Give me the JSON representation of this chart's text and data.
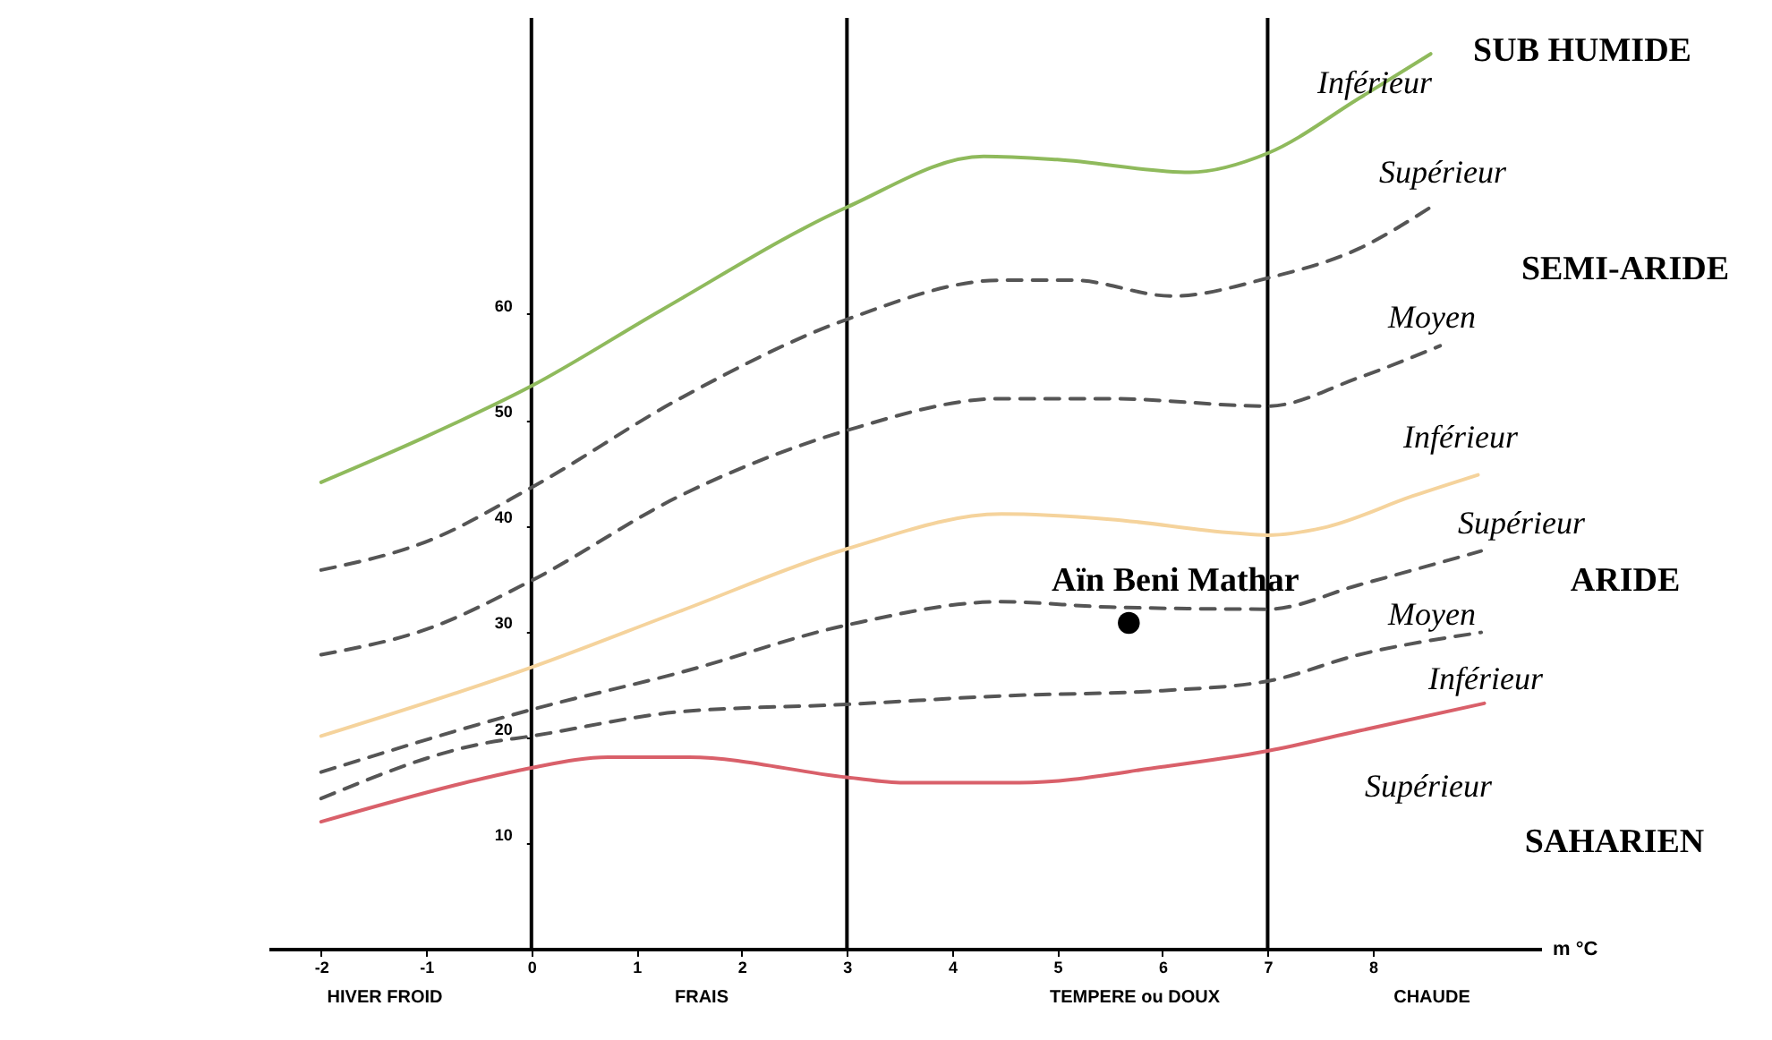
{
  "chart_data": {
    "type": "line",
    "xlabel": "m °C",
    "xlim": [
      -2.5,
      9.6
    ],
    "xticks": [
      -2,
      -1,
      0,
      1,
      2,
      3,
      4,
      5,
      6,
      7,
      8
    ],
    "ylim": [
      0,
      88
    ],
    "yticks": [
      10,
      20,
      30,
      40,
      50,
      60
    ],
    "grid": false,
    "series": [
      {
        "color": "#8fba5c",
        "line_style": "solid",
        "x": [
          -2,
          -1.05,
          0,
          1.24,
          3,
          4.3,
          5,
          6.26,
          7,
          7.87,
          8.55
        ],
        "values": [
          44.1,
          48.2,
          53.2,
          60.4,
          70.1,
          74.9,
          74.6,
          73.4,
          75.2,
          80.4,
          84.6
        ]
      },
      {
        "color": "#555555",
        "line_style": "dashed",
        "x": [
          -2,
          -0.97,
          0,
          1.41,
          3,
          4.47,
          5.15,
          6.09,
          7,
          7.87,
          8.55
        ],
        "values": [
          35.8,
          38.6,
          43.6,
          52.0,
          59.5,
          63.2,
          63.2,
          61.7,
          63.4,
          66.2,
          70.1
        ]
      },
      {
        "color": "#555555",
        "line_style": "dashed",
        "x": [
          -2,
          -0.97,
          0,
          1.41,
          3,
          4.47,
          5.5,
          7,
          7.87,
          8.64
        ],
        "values": [
          27.8,
          30.3,
          34.8,
          42.8,
          49.0,
          52.0,
          52.0,
          51.3,
          54.0,
          57.0
        ]
      },
      {
        "color": "#f5d39c",
        "line_style": "solid",
        "x": [
          -2,
          0,
          1.41,
          3,
          4.47,
          5.5,
          6.68,
          7,
          7.53,
          8.38,
          9.0
        ],
        "values": [
          20.1,
          26.6,
          31.9,
          37.8,
          41.1,
          40.6,
          39.3,
          39.1,
          39.8,
          42.8,
          44.8
        ]
      },
      {
        "color": "#555555",
        "line_style": "dashed",
        "x": [
          -2,
          0,
          1.41,
          3,
          4.47,
          5.5,
          7,
          7.87,
          9.03
        ],
        "values": [
          16.7,
          22.6,
          26.1,
          30.6,
          32.8,
          32.3,
          32.1,
          34.4,
          37.6
        ]
      },
      {
        "color": "#555555",
        "line_style": "dashed",
        "x": [
          -2,
          -0.46,
          0,
          1.41,
          3,
          4.47,
          6.0,
          7,
          7.87,
          9.03
        ],
        "values": [
          14.2,
          19.4,
          20.1,
          22.4,
          23.1,
          23.9,
          24.4,
          25.3,
          27.8,
          29.9
        ]
      },
      {
        "color": "#d9606a",
        "line_style": "solid",
        "x": [
          -2,
          -0.46,
          0,
          0.73,
          1.5,
          3,
          3.54,
          4.64,
          6.0,
          7,
          7.87,
          9.06
        ],
        "values": [
          12.0,
          16.1,
          17.1,
          18.1,
          18.1,
          16.2,
          15.7,
          15.7,
          17.2,
          18.7,
          20.6,
          23.2
        ]
      },
      {
        "type": "scatter",
        "name": "Aïn Beni Mathar",
        "color": "#000000",
        "marker": "circle",
        "x": [
          5.68
        ],
        "values": [
          30.8
        ]
      }
    ],
    "ref_lines": [
      {
        "axis": "x",
        "value": 0,
        "color": "#000000"
      },
      {
        "axis": "x",
        "value": 3,
        "color": "#000000"
      },
      {
        "axis": "x",
        "value": 7,
        "color": "#000000"
      }
    ],
    "annotations": [
      "SUB HUMIDE",
      "Inférieur",
      "Supérieur",
      "SEMI-ARIDE",
      "Moyen",
      "Inférieur",
      "Supérieur",
      "ARIDE",
      "Moyen",
      "Inférieur",
      "Supérieur",
      "SAHARIEN",
      "HIVER FROID",
      "FRAIS",
      "TEMPERE ou DOUX",
      "CHAUDE"
    ]
  }
}
